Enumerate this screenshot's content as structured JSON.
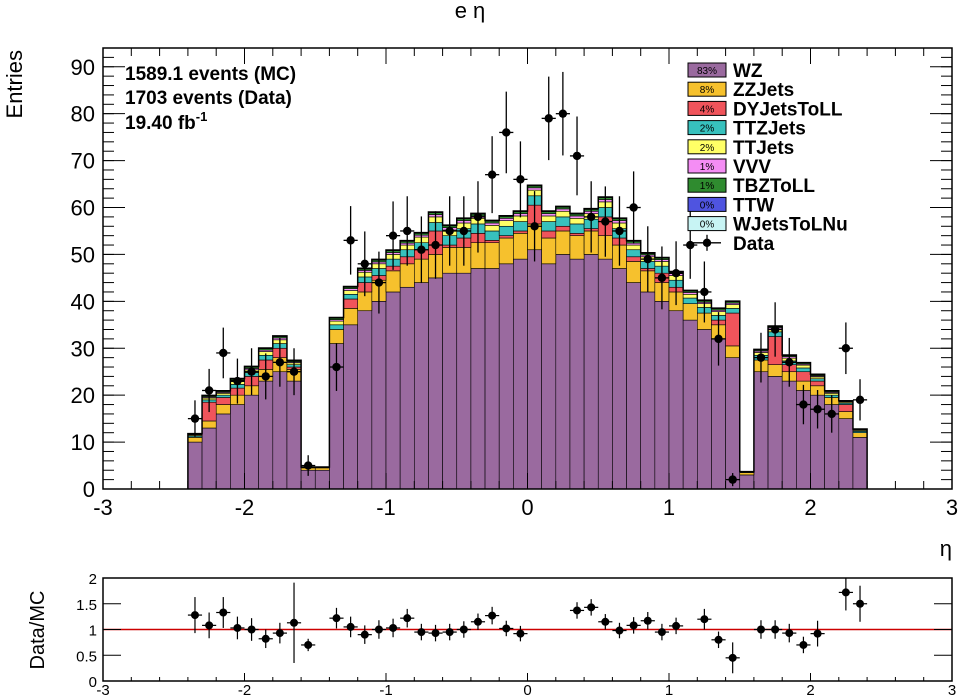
{
  "chart_data": {
    "type": "bar",
    "title": "e η",
    "xlabel": "η",
    "ylabel": "Entries",
    "info_lines": [
      "1589.1 events (MC)",
      "1703 events (Data)"
    ],
    "lumi_value": "19.40 fb",
    "lumi_exp": "-1",
    "xlim": [
      -3,
      3
    ],
    "ylim": [
      0,
      94
    ],
    "x_ticks": [
      -3,
      -2,
      -1,
      0,
      1,
      2,
      3
    ],
    "x_tick_labels": [
      "-3",
      "-2",
      "-1",
      "0",
      "1",
      "2",
      "3"
    ],
    "y_ticks": [
      0,
      10,
      20,
      30,
      40,
      50,
      60,
      70,
      80,
      90
    ],
    "y_tick_labels": [
      "0",
      "10",
      "20",
      "30",
      "40",
      "50",
      "60",
      "70",
      "80",
      "90"
    ],
    "bin_width": 0.1,
    "bin_centers": [
      -2.35,
      -2.25,
      -2.15,
      -2.05,
      -1.95,
      -1.85,
      -1.75,
      -1.65,
      -1.55,
      -1.45,
      -1.35,
      -1.25,
      -1.15,
      -1.05,
      -0.95,
      -0.85,
      -0.75,
      -0.65,
      -0.55,
      -0.45,
      -0.35,
      -0.25,
      -0.15,
      -0.05,
      0.05,
      0.15,
      0.25,
      0.35,
      0.45,
      0.55,
      0.65,
      0.75,
      0.85,
      0.95,
      1.05,
      1.15,
      1.25,
      1.35,
      1.45,
      1.55,
      1.65,
      1.75,
      1.85,
      1.95,
      2.05,
      2.15,
      2.25,
      2.35
    ],
    "series": [
      {
        "name": "WZ",
        "pct": "83%",
        "color": "#9a6a9f",
        "values": [
          10,
          13,
          16,
          18,
          20,
          23,
          25,
          23,
          4,
          4,
          31,
          35,
          38,
          40,
          42,
          43,
          44,
          45,
          46,
          46,
          47,
          47,
          48,
          49,
          51,
          48,
          50,
          49,
          50,
          49,
          47,
          44,
          42,
          40,
          38,
          36,
          34,
          32,
          28,
          3,
          25,
          24,
          23,
          21,
          20,
          18,
          15,
          11
        ]
      },
      {
        "name": "ZZJets",
        "pct": "8%",
        "color": "#f6c12d",
        "values": [
          1,
          1.5,
          2,
          2,
          2,
          2.5,
          3,
          2.5,
          0.5,
          0.5,
          3,
          3.5,
          4,
          4.5,
          4.5,
          5,
          5,
          5,
          5.5,
          5.5,
          5.5,
          5.5,
          5.5,
          5.5,
          5.5,
          5.5,
          5,
          5,
          5,
          5,
          5,
          4.5,
          4.5,
          4,
          4,
          3.5,
          3.5,
          3,
          2.5,
          0.5,
          2.5,
          2.5,
          2,
          2,
          2,
          1.5,
          1.5,
          1
        ]
      },
      {
        "name": "DYJetsToLL",
        "pct": "4%",
        "color": "#f0545b",
        "values": [
          0,
          4,
          1.5,
          1.5,
          2,
          2,
          2,
          0.5,
          0,
          0,
          0,
          2,
          2,
          1,
          1,
          1.5,
          2,
          5,
          0.5,
          2,
          2,
          0.5,
          0.5,
          0.5,
          4,
          1.5,
          1,
          0.5,
          0.5,
          4,
          1.5,
          1,
          0.5,
          2,
          1,
          0,
          0,
          1,
          7,
          0,
          0,
          6,
          1.5,
          2,
          1,
          0,
          1.5,
          0
        ]
      },
      {
        "name": "TTZJets",
        "pct": "2%",
        "color": "#37c1bd",
        "values": [
          0.3,
          0.5,
          0.5,
          0.8,
          0.8,
          1,
          1,
          0.5,
          0.1,
          0.1,
          1,
          1,
          1.2,
          1.5,
          1.5,
          1.5,
          1.5,
          1.8,
          2,
          2,
          2,
          2,
          2,
          2,
          2,
          2,
          2,
          2,
          2,
          2,
          2,
          1.5,
          1.5,
          1.5,
          1.5,
          1.2,
          1.2,
          1,
          1,
          0.1,
          1,
          1,
          0.8,
          0.8,
          0.5,
          0.5,
          0.3,
          0.3
        ]
      },
      {
        "name": "TTJets",
        "pct": "2%",
        "color": "#ffff66",
        "values": [
          0.2,
          0.4,
          0.4,
          0.6,
          0.6,
          0.8,
          0.8,
          0.4,
          0.1,
          0.1,
          0.8,
          0.8,
          1,
          1,
          1,
          1,
          1.2,
          1.2,
          1.2,
          1.2,
          1.2,
          1.2,
          1.2,
          1.2,
          1.2,
          1.2,
          1.2,
          1.2,
          1.2,
          1.2,
          1.2,
          1,
          1,
          1,
          1,
          0.8,
          0.8,
          0.8,
          0.8,
          0.1,
          0.6,
          0.6,
          0.6,
          0.6,
          0.4,
          0.4,
          0.2,
          0.2
        ]
      },
      {
        "name": "VVV",
        "pct": "1%",
        "color": "#f48df4",
        "values": [
          0.1,
          0.2,
          0.2,
          0.3,
          0.3,
          0.3,
          0.4,
          0.2,
          0,
          0,
          0.3,
          0.4,
          0.4,
          0.4,
          0.4,
          0.4,
          0.4,
          0.5,
          0.5,
          0.5,
          0.5,
          0.5,
          0.5,
          0.5,
          0.5,
          0.5,
          0.5,
          0.5,
          0.5,
          0.5,
          0.5,
          0.4,
          0.4,
          0.4,
          0.4,
          0.4,
          0.3,
          0.3,
          0.3,
          0,
          0.3,
          0.3,
          0.3,
          0.2,
          0.2,
          0.2,
          0.1,
          0.1
        ]
      },
      {
        "name": "TBZToLL",
        "pct": "1%",
        "color": "#2f8b2f",
        "values": [
          0.1,
          0.2,
          0.2,
          0.2,
          0.3,
          0.3,
          0.3,
          0.2,
          0,
          0,
          0.3,
          0.3,
          0.3,
          0.4,
          0.4,
          0.4,
          0.4,
          0.4,
          0.4,
          0.4,
          0.4,
          0.4,
          0.4,
          0.4,
          0.4,
          0.4,
          0.4,
          0.4,
          0.4,
          0.4,
          0.4,
          0.4,
          0.3,
          0.3,
          0.3,
          0.3,
          0.3,
          0.3,
          0.3,
          0,
          0.2,
          0.2,
          0.2,
          0.2,
          0.2,
          0.2,
          0.1,
          0.1
        ]
      },
      {
        "name": "TTW",
        "pct": "0%",
        "color": "#4f54e0",
        "values": [
          0.05,
          0.1,
          0.1,
          0.1,
          0.1,
          0.1,
          0.1,
          0.1,
          0,
          0,
          0.1,
          0.1,
          0.1,
          0.1,
          0.1,
          0.1,
          0.1,
          0.1,
          0.1,
          0.1,
          0.1,
          0.1,
          0.1,
          0.1,
          0.1,
          0.1,
          0.1,
          0.1,
          0.1,
          0.1,
          0.1,
          0.1,
          0.1,
          0.1,
          0.1,
          0.1,
          0.1,
          0.1,
          0.1,
          0,
          0.1,
          0.1,
          0.1,
          0.1,
          0.1,
          0.1,
          0.05,
          0.05
        ]
      },
      {
        "name": "WJetsToLNu",
        "pct": "0%",
        "color": "#c8f4f4",
        "values": [
          0.05,
          0.05,
          0.05,
          0.05,
          0.05,
          0.05,
          0.05,
          0.05,
          0,
          0,
          0.05,
          0.05,
          0.05,
          0.05,
          0.05,
          0.05,
          0.05,
          0.05,
          0.05,
          0.05,
          0.05,
          0.05,
          0.05,
          0.05,
          0.05,
          0.05,
          0.05,
          0.05,
          0.05,
          0.05,
          0.05,
          0.05,
          0.05,
          0.05,
          0.05,
          0.05,
          0.05,
          0.05,
          0.05,
          0,
          0.05,
          0.05,
          0.05,
          0.05,
          0.05,
          0.05,
          0.05,
          0.05
        ]
      }
    ],
    "data_series": {
      "name": "Data",
      "values": [
        15,
        21,
        29,
        23,
        25,
        24,
        27,
        25,
        5,
        null,
        26,
        53,
        48,
        44,
        54,
        55,
        51,
        52,
        55,
        55,
        58,
        67,
        76,
        66,
        56,
        79,
        80,
        71,
        58,
        57,
        55,
        60,
        49,
        45,
        46,
        52,
        42,
        32,
        2,
        null,
        28,
        34,
        27,
        18,
        17,
        16,
        30,
        19
      ],
      "yerr": [
        3.9,
        4.6,
        5.4,
        4.8,
        5.0,
        4.9,
        5.2,
        5.0,
        2.2,
        null,
        5.1,
        7.3,
        6.9,
        6.6,
        7.3,
        7.4,
        7.1,
        7.2,
        7.4,
        7.4,
        7.6,
        8.2,
        8.7,
        8.1,
        7.5,
        8.9,
        8.9,
        8.4,
        7.6,
        7.5,
        7.4,
        7.7,
        7.0,
        6.7,
        6.8,
        7.2,
        6.5,
        5.7,
        1.4,
        null,
        5.3,
        5.8,
        5.2,
        4.2,
        4.1,
        4.0,
        5.5,
        4.4
      ]
    },
    "ratio": {
      "ylabel": "Data/MC",
      "ylim": [
        0,
        2
      ],
      "y_ticks": [
        0,
        0.5,
        1,
        1.5,
        2
      ],
      "y_tick_labels": [
        "0",
        "0.5",
        "1",
        "1.5",
        "2"
      ],
      "reference_line": 1,
      "reference_color": "#cc0000",
      "values": [
        1.28,
        1.08,
        1.33,
        1.03,
        1.0,
        0.82,
        0.93,
        1.13,
        0.7,
        null,
        1.22,
        1.05,
        0.9,
        1.0,
        1.03,
        1.22,
        0.95,
        0.93,
        0.95,
        1.0,
        1.15,
        1.27,
        1.02,
        0.92,
        1.37,
        1.43,
        1.15,
        0.98,
        1.08,
        1.17,
        0.95,
        1.07,
        1.2,
        0.8,
        0.45,
        1.0,
        1.0,
        0.93,
        0.7,
        0.92,
        1.72,
        1.5
      ],
      "ratio_x": [
        -2.35,
        -2.25,
        -2.15,
        -2.05,
        -1.95,
        -1.85,
        -1.75,
        -1.65,
        -1.55,
        -1.45,
        -1.35,
        -1.25,
        -1.15,
        -1.05,
        -0.95,
        -0.85,
        -0.75,
        -0.65,
        -0.55,
        -0.45,
        -0.35,
        -0.25,
        -0.15,
        -0.05,
        0.35,
        0.45,
        0.55,
        0.65,
        0.75,
        0.85,
        0.95,
        1.05,
        1.25,
        1.35,
        1.45,
        1.65,
        1.75,
        1.85,
        1.95,
        2.05,
        2.25,
        2.35
      ],
      "yerr": [
        0.35,
        0.25,
        0.3,
        0.22,
        0.22,
        0.18,
        0.2,
        0.78,
        0.12,
        null,
        0.2,
        0.2,
        0.18,
        0.18,
        0.18,
        0.18,
        0.16,
        0.16,
        0.16,
        0.16,
        0.16,
        0.17,
        0.15,
        0.15,
        0.16,
        0.16,
        0.15,
        0.15,
        0.16,
        0.17,
        0.16,
        0.16,
        0.2,
        0.16,
        0.3,
        0.18,
        0.18,
        0.18,
        0.16,
        0.25,
        0.35,
        0.35
      ]
    },
    "legend_placement": "top-right",
    "grid": false
  }
}
